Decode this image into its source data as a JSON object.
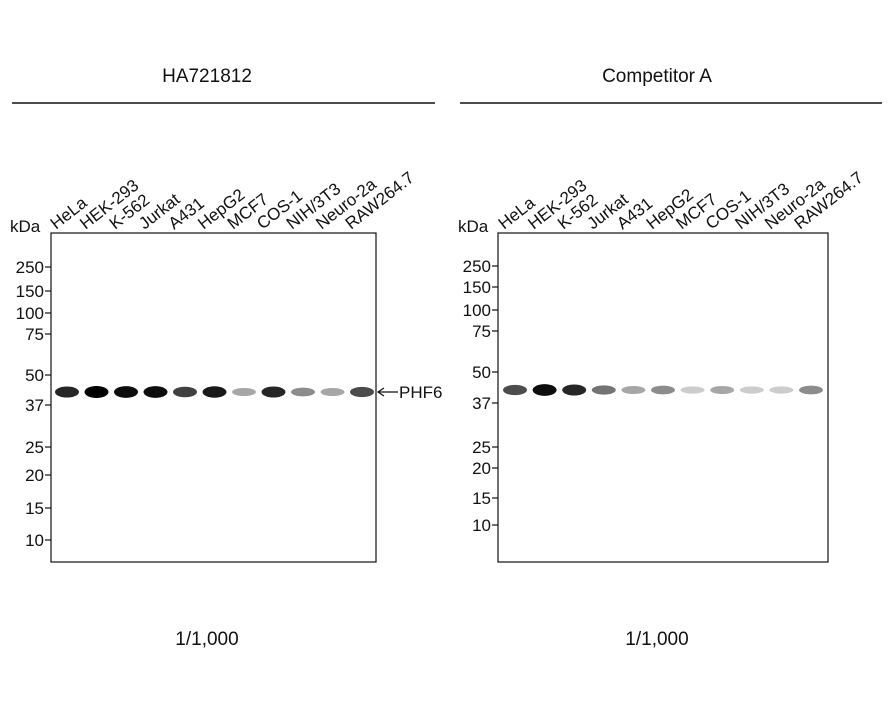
{
  "panels": [
    {
      "title": "HA721812",
      "unit": "kDa",
      "lanes": [
        "HeLa",
        "HEK-293",
        "K-562",
        "Jurkat",
        "A431",
        "HepG2",
        "MCF7",
        "COS-1",
        "NIH/3T3",
        "Neuro-2a",
        "RAW264.7"
      ],
      "markers": [
        "250",
        "150",
        "100",
        "75",
        "50",
        "37",
        "25",
        "20",
        "15",
        "10"
      ],
      "band_label": "PHF6",
      "dilution": "1/1,000"
    },
    {
      "title": "Competitor A",
      "unit": "kDa",
      "lanes": [
        "HeLa",
        "HEK-293",
        "K-562",
        "Jurkat",
        "A431",
        "HepG2",
        "MCF7",
        "COS-1",
        "NIH/3T3",
        "Neuro-2a",
        "RAW264.7"
      ],
      "markers": [
        "250",
        "150",
        "100",
        "75",
        "50",
        "37",
        "25",
        "20",
        "15",
        "10"
      ],
      "dilution": "1/1,000"
    }
  ]
}
